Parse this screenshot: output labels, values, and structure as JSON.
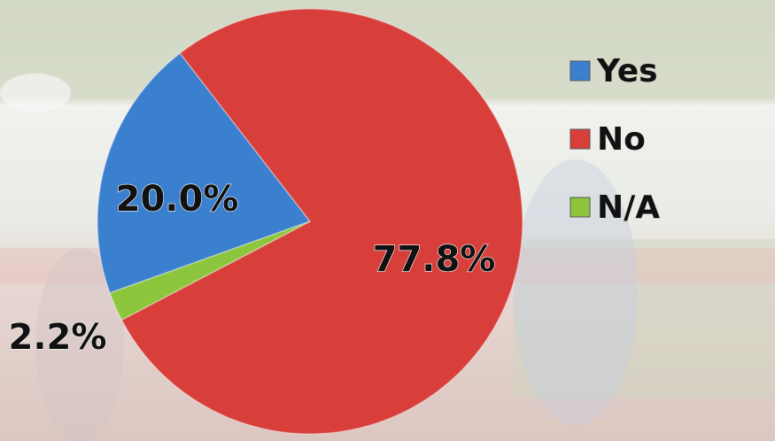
{
  "chart_data": {
    "type": "pie",
    "categories": [
      "Yes",
      "No",
      "N/A"
    ],
    "values": [
      20.0,
      77.8,
      2.2
    ],
    "value_labels": [
      "20.0%",
      "77.8%",
      "2.2%"
    ],
    "colors": [
      "#3b7fcf",
      "#d83f3b",
      "#8dc63c"
    ],
    "legend": "right"
  }
}
